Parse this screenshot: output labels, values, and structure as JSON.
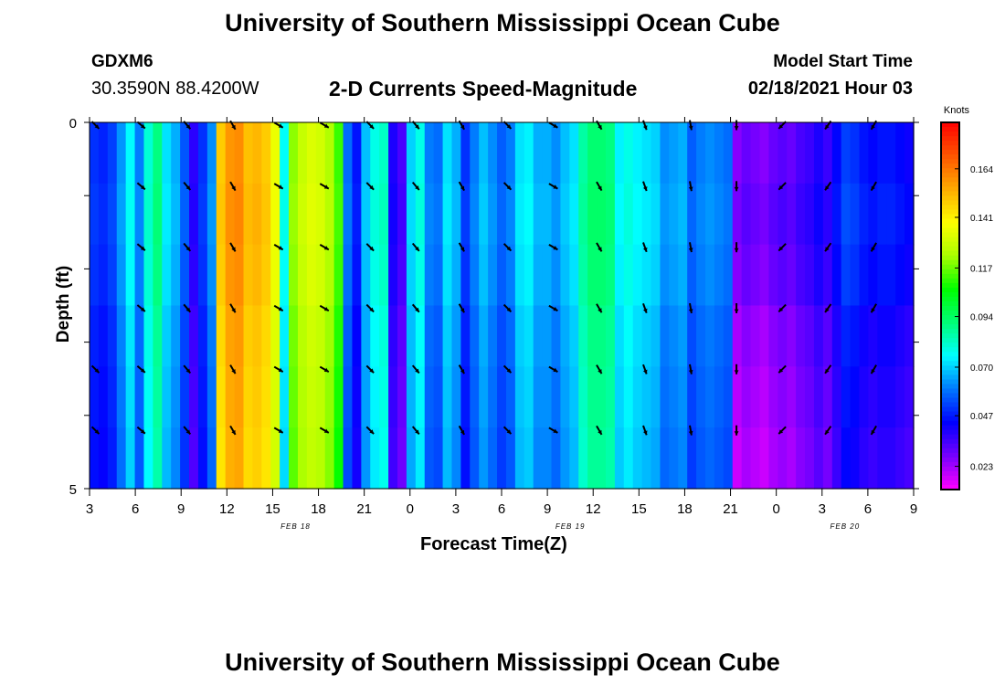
{
  "header": {
    "title": "University of Southern Mississippi Ocean Cube",
    "footer_title": "University of Southern Mississippi Ocean Cube",
    "station_id": "GDXM6",
    "station_coords": "30.3590N 88.4200W",
    "subtitle": "2-D Currents Speed-Magnitude",
    "model_start_label": "Model Start Time",
    "model_start_value": "02/18/2021 Hour 03"
  },
  "chart_data": {
    "type": "heatmap",
    "title": "2-D Currents Speed-Magnitude",
    "xlabel": "Forecast Time(Z)",
    "ylabel": "Depth (ft)",
    "units": "Knots",
    "y_ticks": [
      "0",
      "5"
    ],
    "y_range": [
      0,
      5
    ],
    "x_tick_labels": [
      "3",
      "6",
      "9",
      "12",
      "15",
      "18",
      "21",
      "0",
      "3",
      "6",
      "9",
      "12",
      "15",
      "18",
      "21",
      "0",
      "3",
      "6",
      "9"
    ],
    "date_labels": [
      {
        "text": "FEB 18",
        "after_tick": 4
      },
      {
        "text": "FEB 19",
        "after_tick": 10
      },
      {
        "text": "FEB 20",
        "after_tick": 16
      }
    ],
    "colorbar": {
      "labels": [
        "0.164",
        "0.141",
        "0.117",
        "0.094",
        "0.070",
        "0.047",
        "0.023"
      ],
      "min": 0.012,
      "max": 0.186,
      "colors": [
        "#ff00ff",
        "#7700ff",
        "#0000ff",
        "#0077ff",
        "#00ffff",
        "#00ff77",
        "#00ff00",
        "#aaff00",
        "#ffff00",
        "#ffaa00",
        "#ff5500",
        "#ff0000"
      ]
    },
    "speed_by_hour": [
      0.05,
      0.048,
      0.052,
      0.063,
      0.075,
      0.06,
      0.08,
      0.09,
      0.072,
      0.066,
      0.055,
      0.038,
      0.05,
      0.062,
      0.148,
      0.158,
      0.16,
      0.15,
      0.152,
      0.148,
      0.135,
      0.076,
      0.12,
      0.128,
      0.132,
      0.13,
      0.124,
      0.112,
      0.058,
      0.046,
      0.068,
      0.078,
      0.082,
      0.04,
      0.034,
      0.07,
      0.078,
      0.06,
      0.058,
      0.072,
      0.066,
      0.05,
      0.06,
      0.068,
      0.062,
      0.056,
      0.06,
      0.072,
      0.074,
      0.066,
      0.066,
      0.062,
      0.068,
      0.072,
      0.086,
      0.092,
      0.092,
      0.09,
      0.074,
      0.078,
      0.074,
      0.072,
      0.07,
      0.062,
      0.064,
      0.066,
      0.056,
      0.06,
      0.062,
      0.06,
      0.058,
      0.026,
      0.03,
      0.028,
      0.026,
      0.03,
      0.032,
      0.03,
      0.034,
      0.036,
      0.04,
      0.036,
      0.044,
      0.052,
      0.05,
      0.046,
      0.044,
      0.046,
      0.046,
      0.044,
      0.042
    ],
    "depth_adjust": [
      0.0,
      0.002,
      0.0,
      -0.004,
      -0.006,
      -0.008
    ],
    "vectors": {
      "x_ticks": [
        0,
        1,
        2,
        3,
        4,
        5,
        6,
        7,
        8,
        9,
        10,
        11,
        12,
        13,
        14,
        15,
        16,
        17
      ],
      "depth_rows": [
        0,
        1,
        2,
        3,
        4,
        5
      ],
      "direction_deg_by_tick": [
        135,
        130,
        140,
        150,
        120,
        120,
        135,
        140,
        150,
        135,
        120,
        150,
        160,
        170,
        180,
        225,
        215,
        210
      ],
      "skip": [
        {
          "tick": 0,
          "row": 1
        },
        {
          "tick": 0,
          "row": 2
        },
        {
          "tick": 0,
          "row": 3
        }
      ]
    }
  }
}
